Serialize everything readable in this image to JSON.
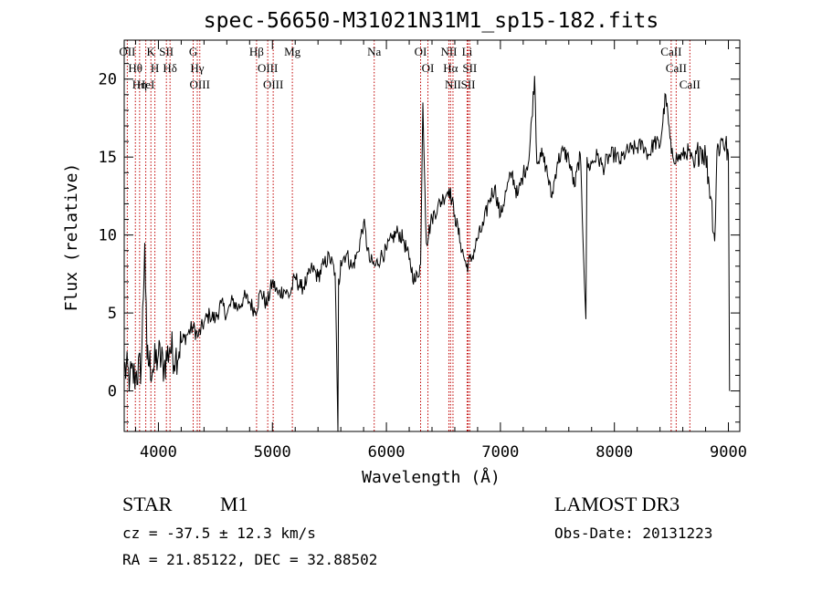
{
  "chart_data": {
    "type": "line",
    "title": "spec-56650-M31021N31M1_sp15-182.fits",
    "xlabel": "Wavelength (Å)",
    "ylabel": "Flux (relative)",
    "xlim": [
      3700,
      9100
    ],
    "ylim": [
      -2.6,
      22.5
    ],
    "xticks": [
      4000,
      5000,
      6000,
      7000,
      8000,
      9000
    ],
    "xtick_labels": [
      "4000",
      "5000",
      "6000",
      "7000",
      "8000",
      "9000"
    ],
    "yticks": [
      0,
      5,
      10,
      15,
      20
    ],
    "ytick_labels": [
      "0",
      "5",
      "10",
      "15",
      "20"
    ],
    "series": [
      {
        "name": "spectrum",
        "x": [
          3700,
          3750,
          3800,
          3850,
          3880,
          3900,
          3950,
          4000,
          4050,
          4100,
          4150,
          4200,
          4250,
          4300,
          4350,
          4400,
          4450,
          4500,
          4550,
          4600,
          4650,
          4700,
          4750,
          4800,
          4850,
          4900,
          4950,
          5000,
          5050,
          5100,
          5150,
          5200,
          5250,
          5300,
          5350,
          5400,
          5450,
          5500,
          5550,
          5575,
          5580,
          5585,
          5600,
          5650,
          5700,
          5750,
          5800,
          5850,
          5900,
          5950,
          6000,
          6050,
          6100,
          6150,
          6200,
          6250,
          6300,
          6320,
          6350,
          6400,
          6450,
          6500,
          6550,
          6600,
          6650,
          6700,
          6750,
          6800,
          6850,
          6900,
          6950,
          7000,
          7050,
          7100,
          7150,
          7200,
          7250,
          7300,
          7320,
          7350,
          7400,
          7450,
          7500,
          7550,
          7600,
          7650,
          7700,
          7750,
          7760,
          7770,
          7800,
          7850,
          7900,
          7950,
          8000,
          8050,
          8100,
          8150,
          8200,
          8250,
          8300,
          8350,
          8400,
          8450,
          8500,
          8550,
          8600,
          8650,
          8700,
          8750,
          8800,
          8850,
          8880,
          8900,
          8950,
          9000,
          9010
        ],
        "values": [
          1.5,
          0.8,
          1.0,
          1.6,
          9.5,
          2.0,
          1.4,
          2.3,
          1.6,
          2.8,
          2.2,
          3.1,
          3.6,
          4.1,
          3.5,
          4.4,
          4.9,
          4.6,
          5.6,
          4.9,
          5.8,
          5.3,
          6.0,
          5.7,
          5.1,
          6.4,
          5.5,
          7.0,
          6.2,
          6.5,
          6.1,
          7.3,
          6.6,
          7.0,
          7.9,
          7.3,
          8.1,
          8.6,
          7.6,
          -2.6,
          7.2,
          6.8,
          8.4,
          8.8,
          7.9,
          8.9,
          10.8,
          8.4,
          8.0,
          8.6,
          9.0,
          9.8,
          10.2,
          9.7,
          8.4,
          7.0,
          8.1,
          18.5,
          9.5,
          11.1,
          11.8,
          12.4,
          13.0,
          11.3,
          9.5,
          8.0,
          8.5,
          9.8,
          10.6,
          12.2,
          13.1,
          11.2,
          12.8,
          14.0,
          12.5,
          13.9,
          14.8,
          20.2,
          14.6,
          15.3,
          14.4,
          12.4,
          14.7,
          15.4,
          14.9,
          13.1,
          15.2,
          4.6,
          15.0,
          14.3,
          14.6,
          15.1,
          14.3,
          15.0,
          15.2,
          14.7,
          15.3,
          15.5,
          15.6,
          15.8,
          15.1,
          16.0,
          15.7,
          19.0,
          15.2,
          14.9,
          15.1,
          15.4,
          14.3,
          15.7,
          15.1,
          12.3,
          9.6,
          15.4,
          16.2,
          15.2,
          0.0
        ]
      }
    ],
    "lines": [
      {
        "label": "Hθ",
        "w": 3798
      },
      {
        "label": "OII",
        "w": 3727
      },
      {
        "label": "Hη",
        "w": 3835
      },
      {
        "label": "HeI",
        "w": 3889
      },
      {
        "label": "K",
        "w": 3934
      },
      {
        "label": "H",
        "w": 3969
      },
      {
        "label": "SII",
        "w": 4070
      },
      {
        "label": "Hδ",
        "w": 4102
      },
      {
        "label": "OIII",
        "w": 4363
      },
      {
        "label": "Hγ",
        "w": 4341
      },
      {
        "label": "G",
        "w": 4305
      },
      {
        "label": "Hβ",
        "w": 4861
      },
      {
        "label": "OIII",
        "w": 4959
      },
      {
        "label": "OIII",
        "w": 5007
      },
      {
        "label": "Mg",
        "w": 5175
      },
      {
        "label": "Na",
        "w": 5893
      },
      {
        "label": "OI",
        "w": 6300
      },
      {
        "label": "OI",
        "w": 6364
      },
      {
        "label": "Hα",
        "w": 6563
      },
      {
        "label": "NII",
        "w": 6548
      },
      {
        "label": "NII",
        "w": 6584
      },
      {
        "label": "SII",
        "w": 6717
      },
      {
        "label": "Li",
        "w": 6708
      },
      {
        "label": "SII",
        "w": 6731
      },
      {
        "label": "CaII",
        "w": 8498
      },
      {
        "label": "CaII",
        "w": 8542
      },
      {
        "label": "CaII",
        "w": 8662
      }
    ]
  },
  "info": {
    "class": "STAR",
    "subclass": "M1",
    "survey": "LAMOST DR3",
    "cz": "cz = -37.5 ± 12.3 km/s",
    "obs_date": "Obs-Date: 20131223",
    "coords": "RA =  21.85122, DEC =  32.88502"
  }
}
